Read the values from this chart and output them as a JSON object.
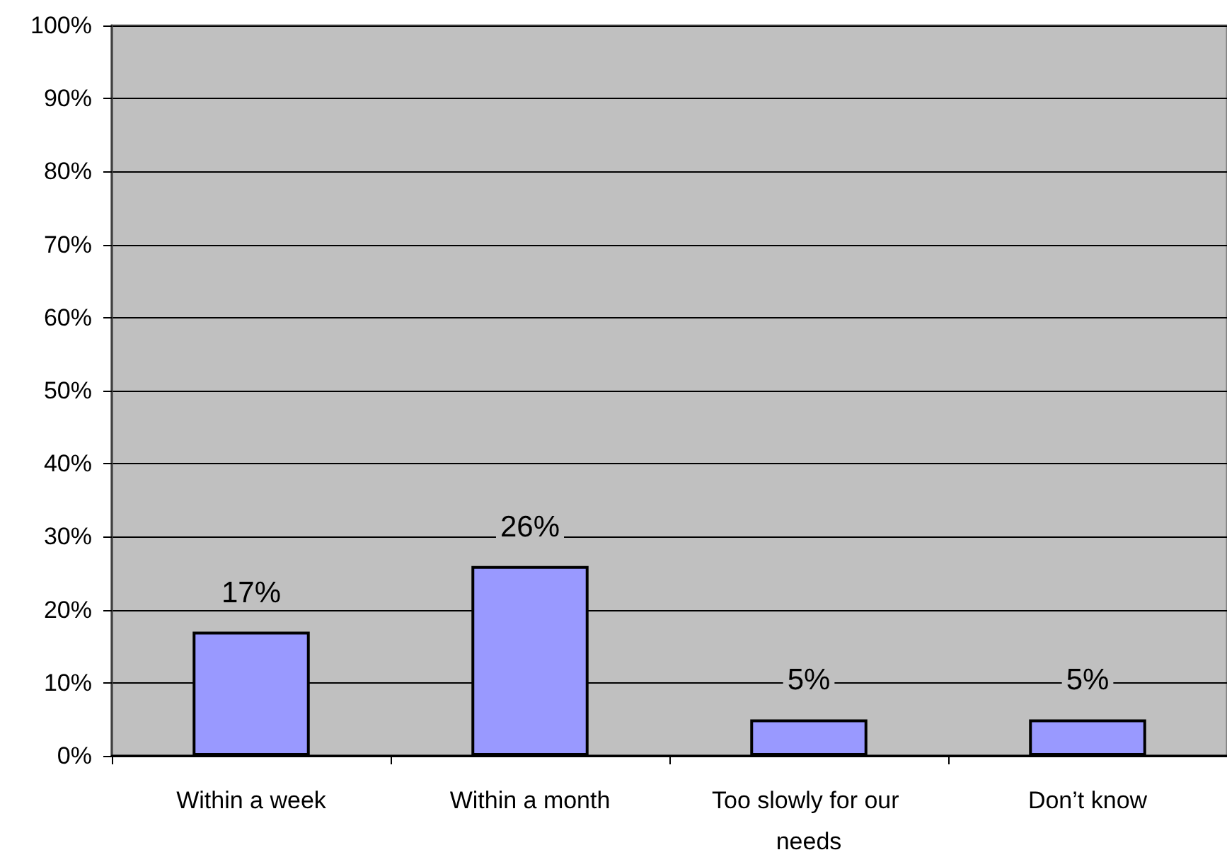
{
  "chart_data": {
    "type": "bar",
    "categories": [
      "Within a week",
      "Within a month",
      "Too slowly for our needs",
      "Don’t know"
    ],
    "values": [
      17,
      26,
      5,
      5
    ],
    "color": "#9999ff",
    "value_labels": [
      "17%",
      "26%",
      "5%",
      "5%"
    ],
    "ylim": [
      0,
      100
    ],
    "yticks": [
      {
        "value": 0,
        "label": "0%"
      },
      {
        "value": 10,
        "label": "10%"
      },
      {
        "value": 20,
        "label": "20%"
      },
      {
        "value": 30,
        "label": "30%"
      },
      {
        "value": 40,
        "label": "40%"
      },
      {
        "value": 50,
        "label": "50%"
      },
      {
        "value": 60,
        "label": "60%"
      },
      {
        "value": 70,
        "label": "70%"
      },
      {
        "value": 80,
        "label": "80%"
      },
      {
        "value": 90,
        "label": "90%"
      },
      {
        "value": 100,
        "label": "100%"
      }
    ],
    "grid": "y"
  }
}
